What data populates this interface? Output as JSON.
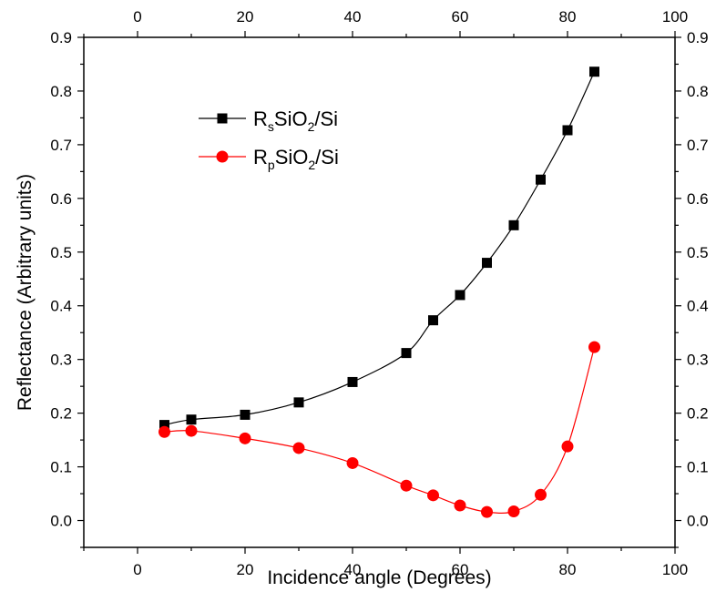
{
  "chart_data": {
    "type": "line",
    "title": "",
    "xlabel": "Incidence angle (Degrees)",
    "ylabel": "Reflectance (Arbitrary units)",
    "xlim": [
      -10,
      100
    ],
    "ylim": [
      -0.05,
      0.9
    ],
    "x_ticks": [
      0,
      20,
      40,
      60,
      80,
      100
    ],
    "x_tick_labels": [
      "0",
      "20",
      "40",
      "60",
      "80",
      "100"
    ],
    "y_ticks": [
      0.0,
      0.1,
      0.2,
      0.3,
      0.4,
      0.5,
      0.6,
      0.7,
      0.8,
      0.9
    ],
    "y_tick_labels": [
      "0.0",
      "0.1",
      "0.2",
      "0.3",
      "0.4",
      "0.5",
      "0.6",
      "0.7",
      "0.8",
      "0.9"
    ],
    "mirror_axes": true,
    "grid": false,
    "legend_position": "upper-left-center",
    "series": [
      {
        "name_parts": [
          "R",
          "s",
          "SiO",
          "2",
          "/Si"
        ],
        "color": "#000000",
        "marker": "square",
        "x": [
          5,
          10,
          20,
          30,
          40,
          50,
          55,
          60,
          65,
          70,
          75,
          80,
          85
        ],
        "y": [
          0.178,
          0.188,
          0.197,
          0.22,
          0.258,
          0.312,
          0.373,
          0.42,
          0.48,
          0.55,
          0.635,
          0.727,
          0.836
        ]
      },
      {
        "name_parts": [
          "R",
          "p",
          "SiO",
          "2",
          "/Si"
        ],
        "color": "#ff0000",
        "marker": "circle",
        "x": [
          5,
          10,
          20,
          30,
          40,
          50,
          55,
          60,
          65,
          70,
          75,
          80,
          85
        ],
        "y": [
          0.165,
          0.167,
          0.153,
          0.135,
          0.107,
          0.065,
          0.047,
          0.028,
          0.016,
          0.017,
          0.048,
          0.138,
          0.323
        ]
      }
    ]
  }
}
